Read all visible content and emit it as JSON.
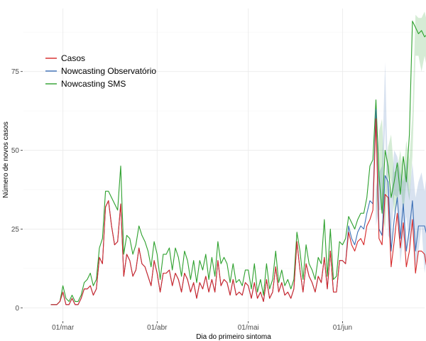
{
  "chart_data": {
    "type": "line",
    "title": "",
    "xlabel": "Dia do primeiro sintoma",
    "ylabel": "Número de novos casos",
    "x_ticks": [
      {
        "label": "01/mar",
        "day": 0
      },
      {
        "label": "01/abr",
        "day": 31
      },
      {
        "label": "01/mai",
        "day": 61
      },
      {
        "label": "01/jun",
        "day": 92
      }
    ],
    "y_ticks": [
      0,
      25,
      50,
      75
    ],
    "xlim": [
      -13,
      119
    ],
    "ylim": [
      -4,
      95
    ],
    "grid": true,
    "legend_position": "top-left",
    "series": [
      {
        "name": "Casos",
        "color": "#d62728",
        "start_day": -4,
        "values": [
          1,
          1,
          1,
          2,
          5,
          1,
          1,
          3,
          1,
          1,
          3,
          6,
          6,
          7,
          4,
          6,
          16,
          14,
          32,
          34,
          26,
          20,
          21,
          33,
          10,
          17,
          15,
          10,
          12,
          19,
          14,
          13,
          10,
          7,
          15,
          11,
          5,
          11,
          11,
          12,
          7,
          11,
          9,
          5,
          11,
          9,
          5,
          8,
          3,
          8,
          6,
          10,
          5,
          9,
          5,
          15,
          7,
          9,
          8,
          4,
          9,
          4,
          5,
          4,
          8,
          7,
          3,
          8,
          3,
          5,
          2,
          9,
          3,
          5,
          13,
          5,
          8,
          4,
          5,
          3,
          6,
          21,
          12,
          5,
          14,
          10,
          8,
          5,
          10,
          8,
          16,
          6,
          18,
          5,
          5,
          15,
          15,
          14,
          24,
          20,
          18,
          21,
          22,
          20,
          26,
          28,
          31,
          60,
          22,
          20,
          36,
          35,
          13,
          21,
          30,
          19,
          27,
          13,
          18,
          28,
          11,
          18,
          18,
          17,
          11,
          10,
          3,
          4,
          9
        ]
      },
      {
        "name": "Nowcasting Observatório",
        "color": "#3b6fb6",
        "start_day": -4,
        "values": [
          1,
          1,
          1,
          2,
          5,
          1,
          1,
          3,
          1,
          1,
          3,
          6,
          6,
          7,
          4,
          6,
          16,
          14,
          32,
          34,
          26,
          20,
          21,
          33,
          10,
          17,
          15,
          10,
          12,
          19,
          14,
          13,
          10,
          7,
          15,
          11,
          5,
          11,
          11,
          12,
          7,
          11,
          9,
          5,
          11,
          9,
          5,
          8,
          3,
          8,
          6,
          10,
          5,
          9,
          5,
          15,
          7,
          9,
          8,
          4,
          9,
          4,
          5,
          4,
          8,
          7,
          3,
          8,
          3,
          5,
          2,
          9,
          3,
          5,
          13,
          5,
          8,
          4,
          5,
          3,
          6,
          21,
          12,
          5,
          14,
          10,
          8,
          5,
          10,
          8,
          16,
          6,
          18,
          5,
          5,
          15,
          15,
          14,
          26,
          22,
          20,
          24,
          26,
          25,
          30,
          34,
          33,
          63,
          25,
          23,
          42,
          40,
          18,
          28,
          35,
          22,
          33,
          18,
          25,
          34,
          18,
          26,
          26,
          26,
          22,
          25,
          19,
          27,
          32
        ]
      },
      {
        "name": "Nowcasting SMS",
        "color": "#2ca02c",
        "start_day": -4,
        "values": [
          1,
          1,
          1,
          2,
          7,
          3,
          2,
          4,
          2,
          2,
          4,
          8,
          9,
          11,
          7,
          9,
          19,
          22,
          37,
          37,
          35,
          33,
          31,
          45,
          17,
          23,
          22,
          17,
          20,
          26,
          23,
          21,
          18,
          13,
          21,
          17,
          9,
          17,
          17,
          19,
          12,
          19,
          16,
          10,
          18,
          15,
          9,
          15,
          8,
          15,
          12,
          17,
          9,
          16,
          10,
          21,
          14,
          16,
          14,
          8,
          14,
          8,
          9,
          7,
          12,
          12,
          6,
          14,
          5,
          9,
          4,
          14,
          6,
          9,
          18,
          8,
          12,
          7,
          9,
          6,
          9,
          24,
          18,
          9,
          20,
          14,
          12,
          9,
          16,
          14,
          28,
          10,
          25,
          9,
          10,
          21,
          20,
          22,
          29,
          27,
          25,
          28,
          30,
          30,
          35,
          45,
          47,
          66,
          42,
          30,
          50,
          45,
          35,
          40,
          46,
          36,
          48,
          40,
          55,
          91,
          89,
          87,
          88,
          86,
          87,
          60,
          55,
          60,
          44
        ]
      }
    ],
    "bands": [
      {
        "series": "Nowcasting SMS",
        "start_day": 103,
        "lower": [
          28,
          40,
          30,
          25,
          43,
          40,
          30,
          33,
          40,
          30,
          40,
          34,
          48,
          80,
          80,
          75,
          80,
          75,
          72,
          50,
          45,
          48,
          33
        ],
        "upper": [
          35,
          56,
          60,
          37,
          51,
          55,
          43,
          44,
          50,
          43,
          53,
          47,
          62,
          93,
          92,
          92,
          94,
          90,
          90,
          76,
          65,
          67,
          58
        ]
      },
      {
        "series": "Nowcasting Observatório",
        "start_day": 103,
        "lower": [
          26,
          31,
          31,
          58,
          23,
          21,
          36,
          35,
          14,
          22,
          29,
          19,
          27,
          13,
          18,
          26,
          11,
          18,
          17,
          16,
          8,
          5,
          14
        ],
        "upper": [
          38,
          43,
          45,
          78,
          40,
          35,
          50,
          48,
          43,
          40,
          47,
          36,
          46,
          35,
          40,
          43,
          37,
          45,
          46,
          52,
          47,
          55,
          57
        ]
      }
    ]
  }
}
